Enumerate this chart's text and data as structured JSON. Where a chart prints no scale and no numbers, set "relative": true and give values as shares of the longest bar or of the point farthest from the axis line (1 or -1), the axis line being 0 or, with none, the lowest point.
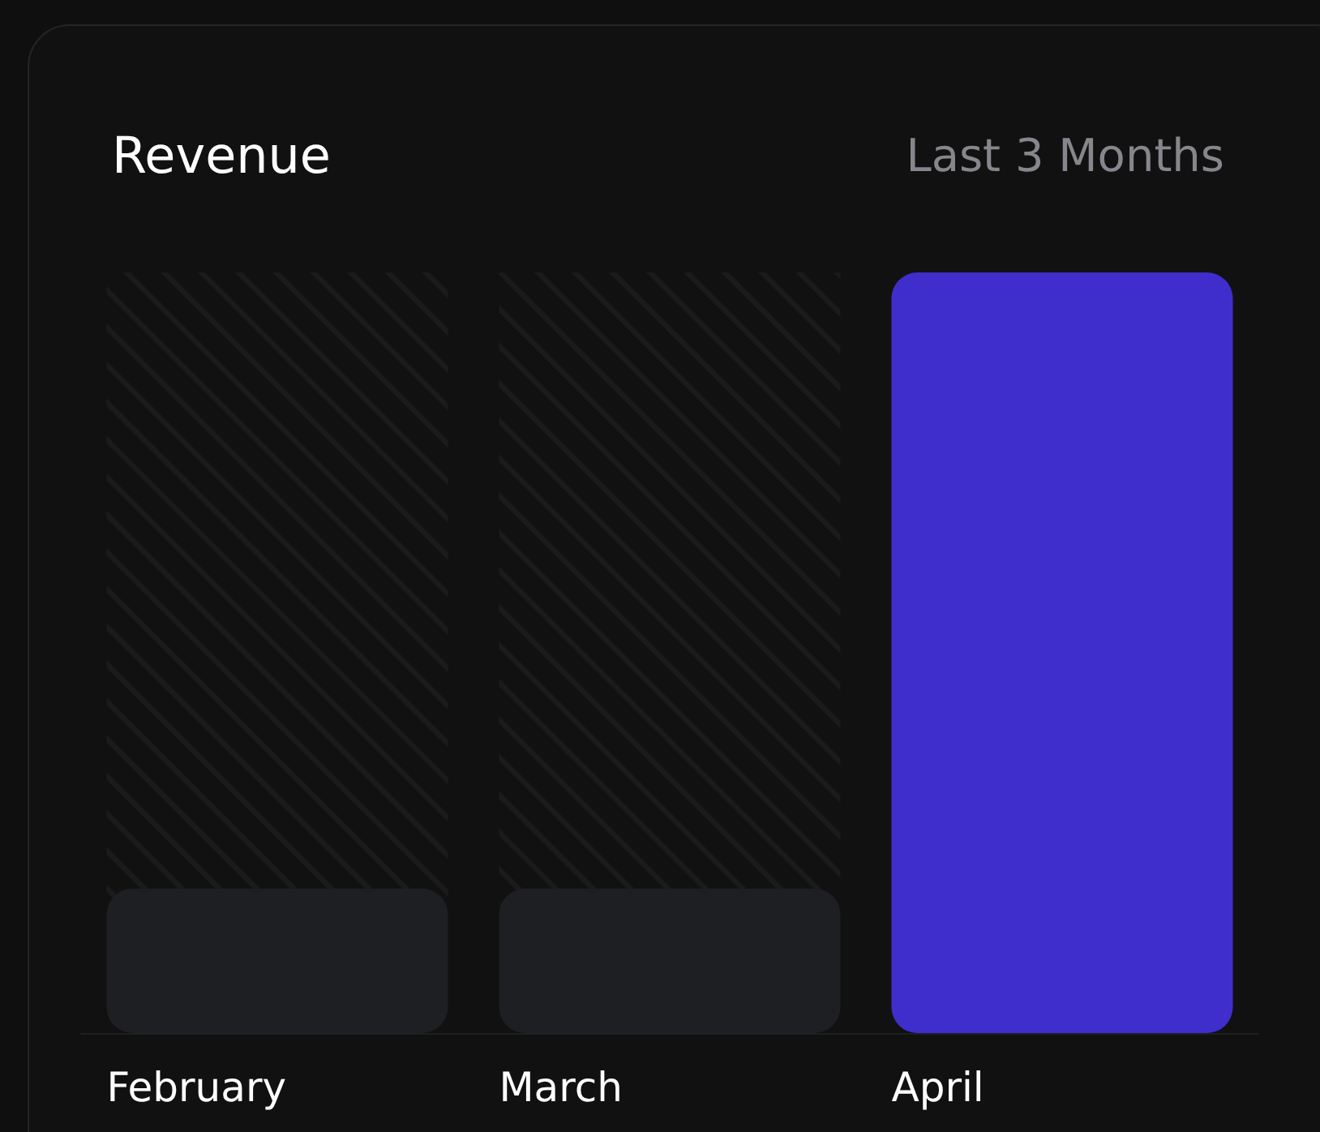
{
  "chart_data": {
    "type": "bar",
    "title": "Revenue",
    "subtitle": "Last 3 Months",
    "categories": [
      "February",
      "March",
      "April"
    ],
    "values": [
      0.19,
      0.19,
      1
    ],
    "colors": [
      "#1e1f22",
      "#1e1f22",
      "#3f2ecc"
    ],
    "relative": true
  }
}
